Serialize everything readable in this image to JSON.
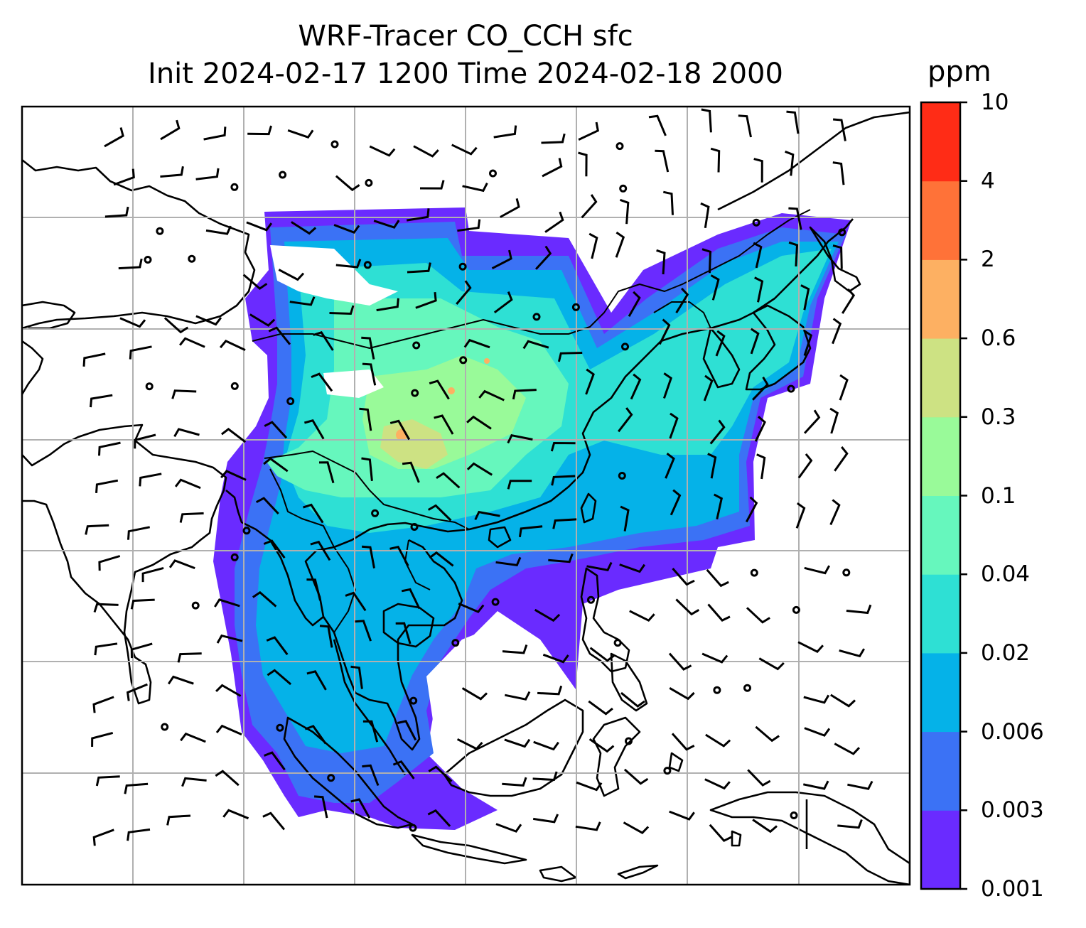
{
  "title": {
    "line1": "WRF-Tracer CO_CCH sfc",
    "line2": "Init 2024-02-17 1200 Time 2024-02-18 2000"
  },
  "colorbar": {
    "unit": "ppm",
    "levels": [
      "0.001",
      "0.003",
      "0.006",
      "0.02",
      "0.04",
      "0.1",
      "0.3",
      "0.6",
      "2",
      "4",
      "10"
    ],
    "colors": [
      "#6a2bff",
      "#3b72f5",
      "#05b2e8",
      "#2ee0d4",
      "#66f7bd",
      "#99fa99",
      "#cde283",
      "#fdb062",
      "#ff7238",
      "#ff2c16"
    ]
  },
  "map": {
    "gridlines": true,
    "wind_barbs": true,
    "coastlines": true
  }
}
